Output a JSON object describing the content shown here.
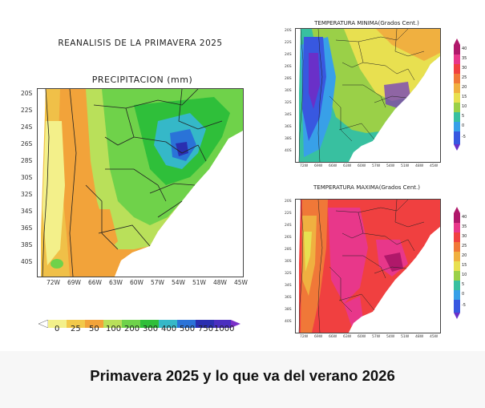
{
  "main_title": "REANALISIS DE LA PRIMAVERA 2025",
  "precip_title": "PRECIPITACION (mm)",
  "tmin_title": "TEMPERATURA MINIMA(Grados Cent.)",
  "tmax_title": "TEMPERATURA MAXIMA(Grados Cent.)",
  "caption": "Primavera 2025 y lo que va del verano 2026",
  "lat_ticks": [
    "20S",
    "22S",
    "24S",
    "26S",
    "28S",
    "30S",
    "32S",
    "34S",
    "36S",
    "38S",
    "40S"
  ],
  "lon_ticks": [
    "72W",
    "69W",
    "66W",
    "63W",
    "60W",
    "57W",
    "54W",
    "51W",
    "48W",
    "45W"
  ],
  "precip_legend": {
    "labels": [
      "0",
      "25",
      "50",
      "100",
      "200",
      "300",
      "400",
      "500",
      "750",
      "1000"
    ],
    "colors": [
      "#ffffff",
      "#f3f08a",
      "#f2c94a",
      "#f2a33a",
      "#b9e05a",
      "#6fd24a",
      "#2fbf3a",
      "#35b8c8",
      "#2a73d8",
      "#2a2fb0",
      "#7a2fc8"
    ]
  },
  "temp_legend": {
    "labels": [
      "40",
      "35",
      "30",
      "25",
      "20",
      "15",
      "10",
      "5",
      "0",
      "-5"
    ],
    "colors": [
      "#b0186a",
      "#e8378a",
      "#f04040",
      "#f07838",
      "#f0b040",
      "#e8e050",
      "#9ad048",
      "#38c0a0",
      "#38a0e8",
      "#3858e0",
      "#6a30c8"
    ]
  }
}
